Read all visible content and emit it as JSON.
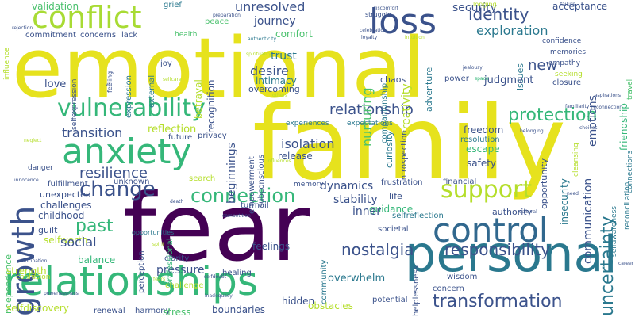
{
  "colors": {
    "background": "#ffffff",
    "palette": [
      "#440154",
      "#46327e",
      "#365c8d",
      "#277f8e",
      "#1fa187",
      "#4ac16d",
      "#a0da39",
      "#fde725"
    ]
  },
  "words": [
    {
      "text": "fear",
      "color": "#440154"
    },
    {
      "text": "family",
      "color": "#e6e21d"
    },
    {
      "text": "emotional",
      "color": "#e6e21d"
    },
    {
      "text": "personal",
      "color": "#2a788e"
    },
    {
      "text": "relationships",
      "color": "#35b779"
    },
    {
      "text": "anxiety",
      "color": "#35b779"
    },
    {
      "text": "conflict",
      "color": "#a8db34"
    },
    {
      "text": "loss",
      "color": "#3b528b"
    },
    {
      "text": "control",
      "color": "#31688e"
    },
    {
      "text": "vulnerability",
      "color": "#35b779"
    },
    {
      "text": "growth",
      "color": "#3b528b"
    },
    {
      "text": "support",
      "color": "#b5de2b"
    },
    {
      "text": "connection",
      "color": "#35b779"
    },
    {
      "text": "change",
      "color": "#3b528b"
    },
    {
      "text": "transformation",
      "color": "#3b528b"
    },
    {
      "text": "uncertainty",
      "color": "#2a788e"
    },
    {
      "text": "protection",
      "color": "#35b779"
    },
    {
      "text": "nostalgia",
      "color": "#3b528b"
    },
    {
      "text": "responsibility",
      "color": "#3b528b"
    },
    {
      "text": "relationship",
      "color": "#3b528b"
    },
    {
      "text": "identity",
      "color": "#3b528b"
    },
    {
      "text": "exploration",
      "color": "#2a788e"
    },
    {
      "text": "security",
      "color": "#3b528b"
    },
    {
      "text": "acceptance",
      "color": "#3b528b"
    },
    {
      "text": "unresolved",
      "color": "#3b528b"
    },
    {
      "text": "journey",
      "color": "#3b528b"
    },
    {
      "text": "validation",
      "color": "#4ac16d"
    },
    {
      "text": "commitment",
      "color": "#3b528b"
    },
    {
      "text": "concerns",
      "color": "#3b528b"
    },
    {
      "text": "lack",
      "color": "#3b528b"
    },
    {
      "text": "health",
      "color": "#4ac16d"
    },
    {
      "text": "peace",
      "color": "#4ac16d"
    },
    {
      "text": "comfort",
      "color": "#4ac16d"
    },
    {
      "text": "trust",
      "color": "#2a788e"
    },
    {
      "text": "desire",
      "color": "#3b528b"
    },
    {
      "text": "intimacy",
      "color": "#2a788e"
    },
    {
      "text": "overcoming",
      "color": "#3b528b"
    },
    {
      "text": "nurturing",
      "color": "#4ac16d"
    },
    {
      "text": "creativity",
      "color": "#b5de2b"
    },
    {
      "text": "companionship",
      "color": "#2a788e"
    },
    {
      "text": "adventure",
      "color": "#2a788e"
    },
    {
      "text": "issues",
      "color": "#2a788e"
    },
    {
      "text": "new",
      "color": "#3b528b"
    },
    {
      "text": "emotions",
      "color": "#3b528b"
    },
    {
      "text": "friendship",
      "color": "#35b779"
    },
    {
      "text": "judgment",
      "color": "#3b528b"
    },
    {
      "text": "confidence",
      "color": "#3b528b"
    },
    {
      "text": "empathy",
      "color": "#3b528b"
    },
    {
      "text": "closure",
      "color": "#3b528b"
    },
    {
      "text": "memories",
      "color": "#3b528b"
    },
    {
      "text": "seeking",
      "color": "#b5de2b"
    },
    {
      "text": "joy",
      "color": "#3b528b"
    },
    {
      "text": "love",
      "color": "#3b528b"
    },
    {
      "text": "selfexpression",
      "color": "#3b528b"
    },
    {
      "text": "feeling",
      "color": "#3b528b"
    },
    {
      "text": "expression",
      "color": "#2a788e"
    },
    {
      "text": "external",
      "color": "#2a788e"
    },
    {
      "text": "recognition",
      "color": "#3b528b"
    },
    {
      "text": "betrayal",
      "color": "#b5de2b"
    },
    {
      "text": "reflection",
      "color": "#b5de2b"
    },
    {
      "text": "transition",
      "color": "#3b528b"
    },
    {
      "text": "future",
      "color": "#3b528b"
    },
    {
      "text": "privacy",
      "color": "#3b528b"
    },
    {
      "text": "resilience",
      "color": "#3b528b"
    },
    {
      "text": "unexpected",
      "color": "#3b528b"
    },
    {
      "text": "unknown",
      "color": "#3b528b"
    },
    {
      "text": "beginnings",
      "color": "#3b528b"
    },
    {
      "text": "isolation",
      "color": "#3b528b"
    },
    {
      "text": "release",
      "color": "#3b528b"
    },
    {
      "text": "subconscious",
      "color": "#3b528b"
    },
    {
      "text": "empowerment",
      "color": "#3b528b"
    },
    {
      "text": "experiences",
      "color": "#2a788e"
    },
    {
      "text": "expectations",
      "color": "#2a788e"
    },
    {
      "text": "curiosity",
      "color": "#2a788e"
    },
    {
      "text": "introspection",
      "color": "#3b528b"
    },
    {
      "text": "dynamics",
      "color": "#3b528b"
    },
    {
      "text": "stability",
      "color": "#3b528b"
    },
    {
      "text": "freedom",
      "color": "#3b528b"
    },
    {
      "text": "resolution",
      "color": "#2a788e"
    },
    {
      "text": "escape",
      "color": "#35b779"
    },
    {
      "text": "safety",
      "color": "#3b528b"
    },
    {
      "text": "frustration",
      "color": "#3b528b"
    },
    {
      "text": "financial",
      "color": "#3b528b"
    },
    {
      "text": "life",
      "color": "#3b528b"
    },
    {
      "text": "guidance",
      "color": "#35b779"
    },
    {
      "text": "selfreflection",
      "color": "#2a788e"
    },
    {
      "text": "authority",
      "color": "#3b528b"
    },
    {
      "text": "insecurity",
      "color": "#2a788e"
    },
    {
      "text": "communication",
      "color": "#3b528b"
    },
    {
      "text": "opportunity",
      "color": "#3b528b"
    },
    {
      "text": "cleansing",
      "color": "#b5de2b"
    },
    {
      "text": "selfawareness",
      "color": "#2a788e"
    },
    {
      "text": "reconciliation",
      "color": "#2a788e"
    },
    {
      "text": "connections",
      "color": "#2a788e"
    },
    {
      "text": "travel",
      "color": "#4ac16d"
    },
    {
      "text": "independence",
      "color": "#4ac16d"
    },
    {
      "text": "childhood",
      "color": "#3b528b"
    },
    {
      "text": "guilt",
      "color": "#3b528b"
    },
    {
      "text": "selfworth",
      "color": "#b5de2b"
    },
    {
      "text": "challenges",
      "color": "#3b528b"
    },
    {
      "text": "fulfillment",
      "color": "#3b528b"
    },
    {
      "text": "danger",
      "color": "#3b528b"
    },
    {
      "text": "search",
      "color": "#b5de2b"
    },
    {
      "text": "past",
      "color": "#35b779"
    },
    {
      "text": "social",
      "color": "#3b528b"
    },
    {
      "text": "balance",
      "color": "#35b779"
    },
    {
      "text": "strength",
      "color": "#b5de2b"
    },
    {
      "text": "selfdiscovery",
      "color": "#b5de2b"
    },
    {
      "text": "renewal",
      "color": "#3b528b"
    },
    {
      "text": "harmony",
      "color": "#3b528b"
    },
    {
      "text": "stress",
      "color": "#4ac16d"
    },
    {
      "text": "boundaries",
      "color": "#3b528b"
    },
    {
      "text": "pressure",
      "color": "#3b528b"
    },
    {
      "text": "clarity",
      "color": "#3b528b"
    },
    {
      "text": "challenge",
      "color": "#b5de2b"
    },
    {
      "text": "healing",
      "color": "#3b528b"
    },
    {
      "text": "perception",
      "color": "#3b528b"
    },
    {
      "text": "professional",
      "color": "#35b779"
    },
    {
      "text": "feelings",
      "color": "#3b528b"
    },
    {
      "text": "turmoil",
      "color": "#3b528b"
    },
    {
      "text": "overwhelm",
      "color": "#2a788e"
    },
    {
      "text": "community",
      "color": "#2a788e"
    },
    {
      "text": "helplessness",
      "color": "#3b528b"
    },
    {
      "text": "hidden",
      "color": "#3b528b"
    },
    {
      "text": "obstacles",
      "color": "#b5de2b"
    },
    {
      "text": "potential",
      "color": "#3b528b"
    },
    {
      "text": "concern",
      "color": "#3b528b"
    },
    {
      "text": "wisdom",
      "color": "#3b528b"
    },
    {
      "text": "inner",
      "color": "#3b528b"
    },
    {
      "text": "societal",
      "color": "#3b528b"
    },
    {
      "text": "power",
      "color": "#3b528b"
    },
    {
      "text": "chaos",
      "color": "#3b528b"
    },
    {
      "text": "memory",
      "color": "#3b528b"
    },
    {
      "text": "confusion",
      "color": "#b5de2b"
    },
    {
      "text": "struggle",
      "color": "#3b528b"
    },
    {
      "text": "grief",
      "color": "#2a788e"
    },
    {
      "text": "longing",
      "color": "#b5de2b"
    },
    {
      "text": "influence",
      "color": "#b5de2b"
    },
    {
      "text": "opportunities",
      "color": "#2a788e"
    },
    {
      "text": "vs",
      "color": "#3b528b"
    },
    {
      "text": "spirituality",
      "color": "#b5de2b"
    },
    {
      "text": "authenticity",
      "color": "#2a788e"
    },
    {
      "text": "loyalty",
      "color": "#3b528b"
    },
    {
      "text": "discomfort",
      "color": "#3b528b"
    },
    {
      "text": "celebration",
      "color": "#3b528b"
    },
    {
      "text": "intuition",
      "color": "#b5de2b"
    },
    {
      "text": "jealousy",
      "color": "#3b528b"
    },
    {
      "text": "rejection",
      "color": "#3b528b"
    },
    {
      "text": "preparation",
      "color": "#3b528b"
    },
    {
      "text": "failure",
      "color": "#3b528b"
    },
    {
      "text": "belonging",
      "color": "#3b528b"
    },
    {
      "text": "familiarity",
      "color": "#3b528b"
    },
    {
      "text": "reconnection",
      "color": "#3b528b"
    },
    {
      "text": "neglect",
      "color": "#b5de2b"
    },
    {
      "text": "innocence",
      "color": "#3b528b"
    },
    {
      "text": "competition",
      "color": "#3b528b"
    },
    {
      "text": "anticipation",
      "color": "#3b528b"
    },
    {
      "text": "inadequacy",
      "color": "#3b528b"
    },
    {
      "text": "powerlessness",
      "color": "#3b528b"
    },
    {
      "text": "selfdoubt",
      "color": "#3b528b"
    },
    {
      "text": "spirit",
      "color": "#b5de2b"
    },
    {
      "text": "need",
      "color": "#3b528b"
    },
    {
      "text": "career",
      "color": "#3b528b"
    },
    {
      "text": "cultural",
      "color": "#3b528b"
    },
    {
      "text": "choices",
      "color": "#3b528b"
    },
    {
      "text": "space",
      "color": "#35b779"
    },
    {
      "text": "influences",
      "color": "#b5de2b"
    },
    {
      "text": "fears",
      "color": "#b5de2b"
    },
    {
      "text": "others",
      "color": "#b5de2b"
    },
    {
      "text": "selfcare",
      "color": "#b5de2b"
    },
    {
      "text": "death",
      "color": "#3b528b"
    },
    {
      "text": "aspirations",
      "color": "#3b528b"
    },
    {
      "text": "success",
      "color": "#b5de2b"
    },
    {
      "text": "parental",
      "color": "#3b528b"
    }
  ]
}
